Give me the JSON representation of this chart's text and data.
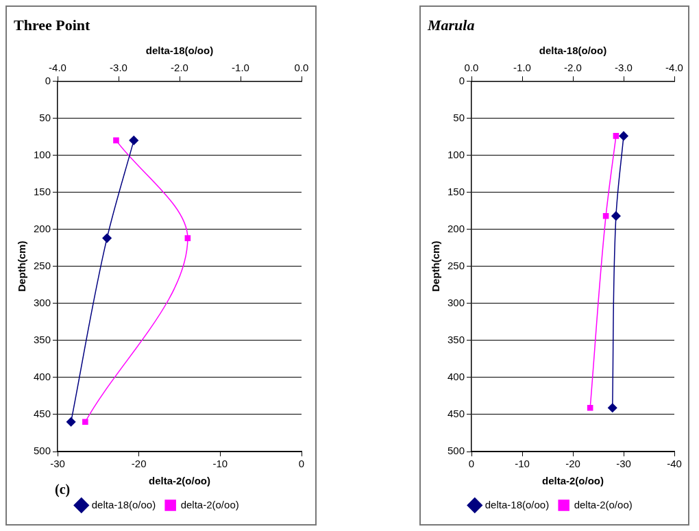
{
  "chart_data": [
    {
      "type": "line",
      "title": "Three Point",
      "x2label": "delta-18(o/oo)",
      "xlabel": "delta-2(o/oo)",
      "ylabel": "Depth(cm)",
      "annotations": [
        "(c)"
      ],
      "xlim": [
        -30,
        0
      ],
      "xticks": [
        -30,
        -20,
        -10,
        0
      ],
      "x2lim": [
        -4,
        0
      ],
      "x2ticks": [
        {
          "value": -4,
          "label": "-4.0"
        },
        {
          "value": -3,
          "label": "-3.0"
        },
        {
          "value": -2,
          "label": "-2.0"
        },
        {
          "value": -1,
          "label": "-1.0"
        },
        {
          "value": 0,
          "label": "0.0"
        }
      ],
      "ylim": [
        500,
        0
      ],
      "yticks": [
        0,
        50,
        100,
        150,
        200,
        250,
        300,
        350,
        400,
        450,
        500
      ],
      "grid": "y",
      "legend": "bottom",
      "series": [
        {
          "name": "delta-18(o/oo)",
          "color": "#000080",
          "axis": "x2",
          "marker": "diamond",
          "x": [
            -2.75,
            -3.19,
            -3.78
          ],
          "values": [
            80,
            212,
            460
          ]
        },
        {
          "name": "delta-2(o/oo)",
          "color": "#ff00ff",
          "marker": "square",
          "x": [
            -22.8,
            -14,
            -26.6
          ],
          "values": [
            80,
            212,
            460
          ]
        }
      ]
    },
    {
      "type": "line",
      "title": "Marula",
      "x2label": "delta-18(o/oo)",
      "xlabel": "delta-2(o/oo)",
      "ylabel": "Depth(cm)",
      "xlim": [
        0,
        -40
      ],
      "xticks": [
        0,
        -10,
        -20,
        -30,
        -40
      ],
      "x2lim": [
        0,
        -4
      ],
      "x2ticks": [
        {
          "value": 0,
          "label": "0.0"
        },
        {
          "value": -1,
          "label": "-1.0"
        },
        {
          "value": -2,
          "label": "-2.0"
        },
        {
          "value": -3,
          "label": "-3.0"
        },
        {
          "value": -4,
          "label": "-4.0"
        }
      ],
      "ylim": [
        500,
        0
      ],
      "yticks": [
        0,
        50,
        100,
        150,
        200,
        250,
        300,
        350,
        400,
        450,
        500
      ],
      "grid": "y",
      "legend": "bottom",
      "series": [
        {
          "name": "delta-18(o/oo)",
          "color": "#000080",
          "axis": "x2",
          "marker": "diamond",
          "x": [
            -3.0,
            -2.85,
            -2.78
          ],
          "values": [
            74,
            182,
            441
          ]
        },
        {
          "name": "delta-2(o/oo)",
          "color": "#ff00ff",
          "marker": "square",
          "x": [
            -28.5,
            -26.5,
            -23.4
          ],
          "values": [
            74,
            182,
            441
          ]
        }
      ]
    }
  ]
}
